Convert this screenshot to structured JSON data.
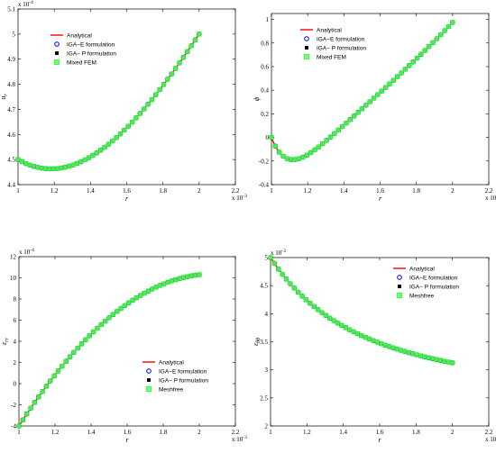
{
  "chart_data": [
    {
      "type": "line",
      "id": "ur",
      "title": "",
      "xlabel": "r",
      "ylabel": "u_r",
      "ylabel_main": "u",
      "ylabel_sub": "r",
      "x_multiplier_base": "x 10",
      "x_multiplier_exp": "-3",
      "y_multiplier_base": "x 10",
      "y_multiplier_exp": "-4",
      "xlim": [
        1,
        2.2
      ],
      "ylim": [
        4.4,
        5.1
      ],
      "xticks": [
        1,
        1.2,
        1.4,
        1.6,
        1.8,
        2,
        2.2
      ],
      "xtick_labels": [
        "1",
        "1.2",
        "1.4",
        "1.6",
        "1.8",
        "2",
        "2.2"
      ],
      "yticks": [
        4.4,
        4.5,
        4.6,
        4.7,
        4.8,
        4.9,
        5,
        5.1
      ],
      "ytick_labels": [
        "4.4",
        "4.5",
        "4.6",
        "4.7",
        "4.8",
        "4.9",
        "5",
        "5.1"
      ],
      "legend_position": "top-left",
      "legend": [
        "Analytical",
        "IGA−E formulation",
        "IGA− P formulation",
        "Mixed FEM"
      ],
      "curve": {
        "x0": 1,
        "x1": 2,
        "a": 0.25,
        "b": 0.4,
        "c": 0.35,
        "d": 0.4
      },
      "series": [
        {
          "name": "Analytical",
          "style": "line",
          "color": "#ff0000"
        },
        {
          "name": "IGA−E formulation",
          "style": "circle",
          "color": "#0000ff"
        },
        {
          "name": "IGA− P formulation",
          "style": "square",
          "color": "#000000"
        },
        {
          "name": "Mixed FEM",
          "style": "green-square",
          "color": "#00ff00"
        }
      ],
      "grid": false
    },
    {
      "type": "line",
      "id": "phi",
      "title": "",
      "xlabel": "r",
      "ylabel": "ϕ",
      "ylabel_main": "ϕ",
      "ylabel_sub": "",
      "x_multiplier_base": "x 10",
      "x_multiplier_exp": "-3",
      "y_multiplier_base": "",
      "y_multiplier_exp": "",
      "xlim": [
        1,
        2.2
      ],
      "ylim": [
        -0.4,
        1.05
      ],
      "xticks": [
        1,
        1.2,
        1.4,
        1.6,
        1.8,
        2,
        2.2
      ],
      "xtick_labels": [
        "1",
        "1.2",
        "1.4",
        "1.6",
        "1.8",
        "2",
        "2.2"
      ],
      "yticks": [
        -0.4,
        -0.2,
        0,
        0.2,
        0.4,
        0.6,
        0.8,
        1
      ],
      "ytick_labels": [
        "-0.4",
        "-0.2",
        "0",
        "0.2",
        "0.4",
        "0.6",
        "0.8",
        "1"
      ],
      "legend_position": "top-left",
      "legend": [
        "Analytical",
        "IGA−E formulation",
        "IGA− P formulation",
        "Mixed FEM"
      ],
      "curve": {
        "x0": 1,
        "x1": 2,
        "a": 0,
        "b": 1,
        "c": 1.1,
        "d": 0
      },
      "series": [
        {
          "name": "Analytical",
          "style": "line",
          "color": "#ff0000"
        },
        {
          "name": "IGA−E formulation",
          "style": "circle",
          "color": "#0000ff"
        },
        {
          "name": "IGA− P formulation",
          "style": "square",
          "color": "#000000"
        },
        {
          "name": "Mixed FEM",
          "style": "green-square",
          "color": "#00ff00"
        }
      ],
      "grid": false
    },
    {
      "type": "line",
      "id": "err",
      "title": "",
      "xlabel": "r",
      "ylabel": "ε_rr",
      "ylabel_main": "ε",
      "ylabel_sub": "rr",
      "x_multiplier_base": "x 10",
      "x_multiplier_exp": "-3",
      "y_multiplier_base": "x 10",
      "y_multiplier_exp": "-4",
      "xlim": [
        1,
        2.2
      ],
      "ylim": [
        -4,
        12
      ],
      "xticks": [
        1,
        1.2,
        1.4,
        1.6,
        1.8,
        2,
        2.2
      ],
      "xtick_labels": [
        "1",
        "1.2",
        "1.4",
        "1.6",
        "1.8",
        "2",
        "2.2"
      ],
      "yticks": [
        -4,
        -2,
        0,
        2,
        4,
        6,
        8,
        10,
        12
      ],
      "ytick_labels": [
        "-4",
        "-2",
        "0",
        "2",
        "4",
        "6",
        "8",
        "10",
        "12"
      ],
      "legend_position": "bottom-right",
      "legend": [
        "Analytical",
        "IGA−E formulation",
        "IGA− P formulation",
        "Meshfree"
      ],
      "curve": {
        "x0": 1,
        "x1": 2,
        "a": -4,
        "b": 10.3,
        "c": 24.6,
        "d": 0
      },
      "series": [
        {
          "name": "Analytical",
          "style": "line",
          "color": "#ff0000"
        },
        {
          "name": "IGA−E formulation",
          "style": "circle",
          "color": "#0000ff"
        },
        {
          "name": "IGA− P formulation",
          "style": "square",
          "color": "#000000"
        },
        {
          "name": "Meshfree",
          "style": "green-square",
          "color": "#00ff00"
        }
      ],
      "grid": false
    },
    {
      "type": "line",
      "id": "etheta",
      "title": "",
      "xlabel": "r",
      "ylabel": "ε_θθ",
      "ylabel_main": "ε",
      "ylabel_sub": "θθ",
      "x_multiplier_base": "x 10",
      "x_multiplier_exp": "-3",
      "y_multiplier_base": "x 10",
      "y_multiplier_exp": "-3",
      "xlim": [
        1,
        2.2
      ],
      "ylim": [
        2,
        5
      ],
      "xticks": [
        1,
        1.2,
        1.4,
        1.6,
        1.8,
        2,
        2.2
      ],
      "xtick_labels": [
        "1",
        "1.2",
        "1.4",
        "1.6",
        "1.8",
        "2",
        "2.2"
      ],
      "yticks": [
        2,
        2.5,
        3,
        3.5,
        4,
        4.5,
        5
      ],
      "ytick_labels": [
        "2",
        "2.5",
        "3",
        "3.5",
        "4",
        "4.5",
        "5"
      ],
      "legend_position": "top-right",
      "legend": [
        "Analytical",
        "IGA−E formulation",
        "IGA− P formulation",
        "Meshfree"
      ],
      "curve": {
        "x0": 1,
        "x1": 2,
        "a": 4.5,
        "b": 2.5,
        "c": -4.0,
        "d": 2.0
      },
      "series": [
        {
          "name": "Analytical",
          "style": "line",
          "color": "#ff0000"
        },
        {
          "name": "IGA−E formulation",
          "style": "circle",
          "color": "#0000ff"
        },
        {
          "name": "IGA− P formulation",
          "style": "square",
          "color": "#000000"
        },
        {
          "name": "Meshfree",
          "style": "green-square",
          "color": "#00ff00"
        }
      ],
      "grid": false
    }
  ]
}
